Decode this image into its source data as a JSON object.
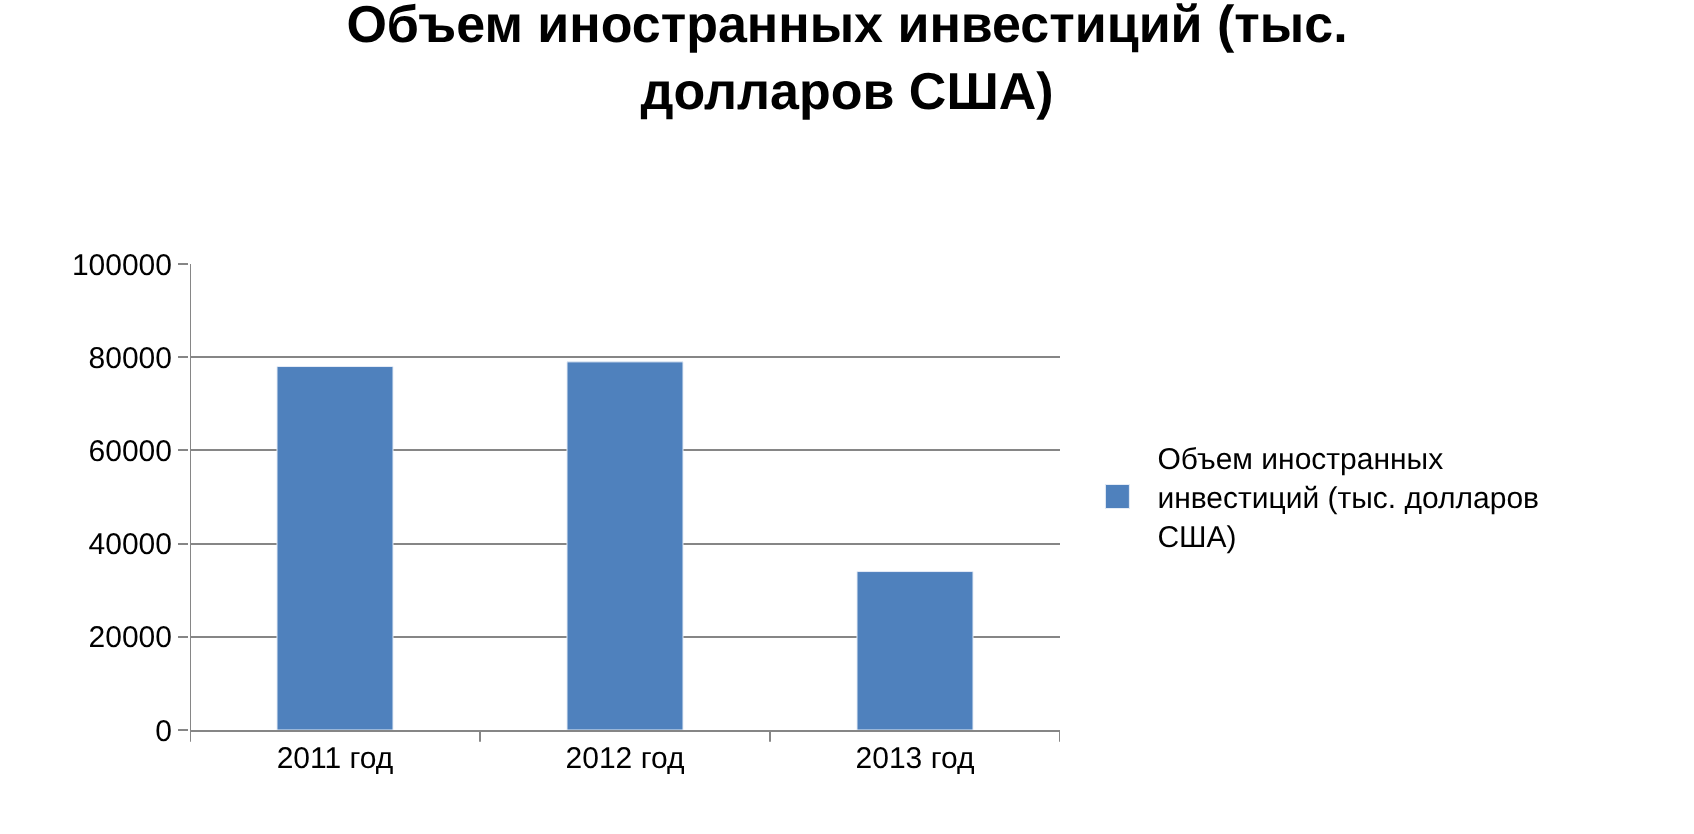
{
  "chart_data": {
    "type": "bar",
    "title": "Объем иностранных инвестиций (тыс. долларов США)",
    "categories": [
      "2011 год",
      "2012 год",
      "2013 год"
    ],
    "series": [
      {
        "name": "Объем иностранных инвестиций (тыс. долларов США)",
        "color": "#4f81bd",
        "values": [
          78000,
          79000,
          34000
        ]
      }
    ],
    "ylim": [
      0,
      100000
    ],
    "yticks": [
      0,
      20000,
      40000,
      60000,
      80000,
      100000
    ],
    "grid": "y",
    "legend": "right"
  }
}
